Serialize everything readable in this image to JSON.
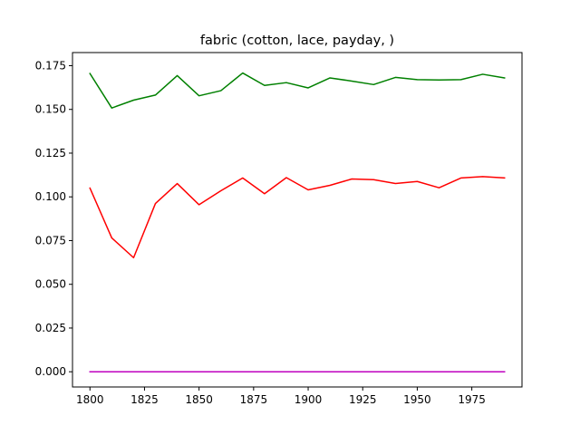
{
  "chart_data": {
    "type": "line",
    "title": "fabric (cotton, lace, payday, )",
    "xlabel": "",
    "ylabel": "",
    "xlim": [
      1792,
      1998
    ],
    "ylim": [
      -0.0087,
      0.1825
    ],
    "grid": false,
    "legend": "none",
    "x_ticks": [
      1800,
      1825,
      1850,
      1875,
      1900,
      1925,
      1950,
      1975
    ],
    "x_tick_labels": [
      "1800",
      "1825",
      "1850",
      "1875",
      "1900",
      "1925",
      "1950",
      "1975"
    ],
    "y_ticks": [
      0.0,
      0.025,
      0.05,
      0.075,
      0.1,
      0.125,
      0.15,
      0.175
    ],
    "y_tick_labels": [
      "0.000",
      "0.025",
      "0.050",
      "0.075",
      "0.100",
      "0.125",
      "0.150",
      "0.175"
    ],
    "x": [
      1800,
      1810,
      1820,
      1830,
      1840,
      1850,
      1860,
      1870,
      1880,
      1890,
      1900,
      1910,
      1920,
      1930,
      1940,
      1950,
      1960,
      1970,
      1980,
      1990
    ],
    "series": [
      {
        "color": "#008000",
        "values": [
          0.1705,
          0.1508,
          0.1553,
          0.1582,
          0.1693,
          0.1578,
          0.1607,
          0.1708,
          0.1637,
          0.1653,
          0.1623,
          0.168,
          0.1662,
          0.1642,
          0.1683,
          0.167,
          0.1668,
          0.167,
          0.1701,
          0.168
        ]
      },
      {
        "color": "#ff0000",
        "values": [
          0.105,
          0.0765,
          0.0652,
          0.0962,
          0.1076,
          0.0955,
          0.1035,
          0.1108,
          0.1018,
          0.111,
          0.104,
          0.1066,
          0.1102,
          0.1098,
          0.1076,
          0.1088,
          0.1052,
          0.1108,
          0.1116,
          0.1108
        ]
      },
      {
        "color": "#bf00bf",
        "values": [
          0.0,
          0.0,
          0.0,
          0.0,
          0.0,
          0.0,
          0.0,
          0.0,
          0.0,
          0.0,
          0.0,
          0.0,
          0.0,
          0.0,
          0.0,
          0.0,
          0.0,
          0.0,
          0.0,
          0.0
        ]
      }
    ]
  }
}
